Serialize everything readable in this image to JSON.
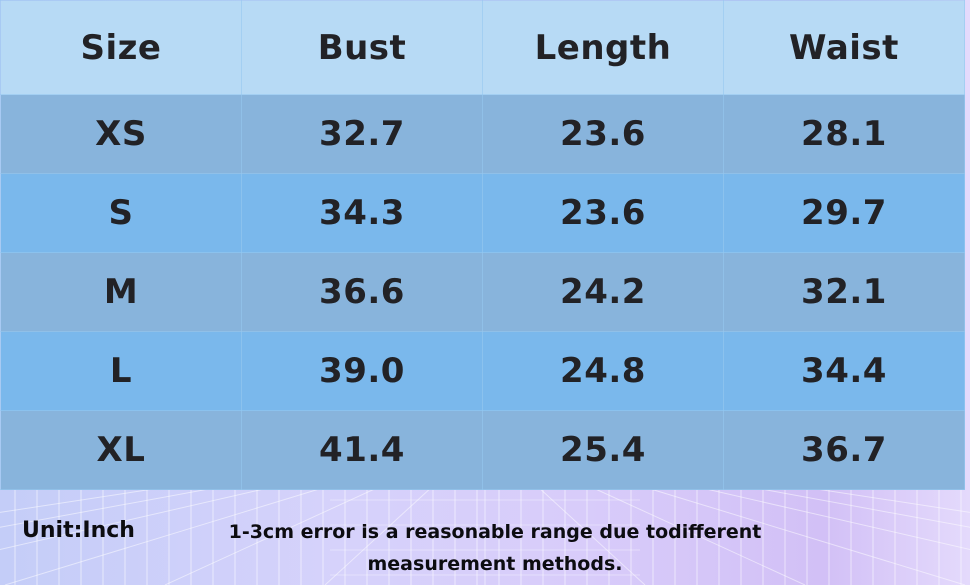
{
  "table": {
    "headers": [
      "Size",
      "Bust",
      "Length",
      "Waist"
    ],
    "rows": [
      [
        "XS",
        "32.7",
        "23.6",
        "28.1"
      ],
      [
        "S",
        "34.3",
        "23.6",
        "29.7"
      ],
      [
        "M",
        "36.6",
        "24.2",
        "32.1"
      ],
      [
        "L",
        "39.0",
        "24.8",
        "34.4"
      ],
      [
        "XL",
        "41.4",
        "25.4",
        "36.7"
      ]
    ]
  },
  "footer": {
    "unit": "Unit:Inch",
    "disclaimer": "1-3cm error is a reasonable range due todifferent measurement methods."
  },
  "colors": {
    "header_bg": "#b7daf5",
    "row_odd_bg": "#88b4dc",
    "row_even_bg": "#7ab8ec",
    "text": "#222226"
  }
}
